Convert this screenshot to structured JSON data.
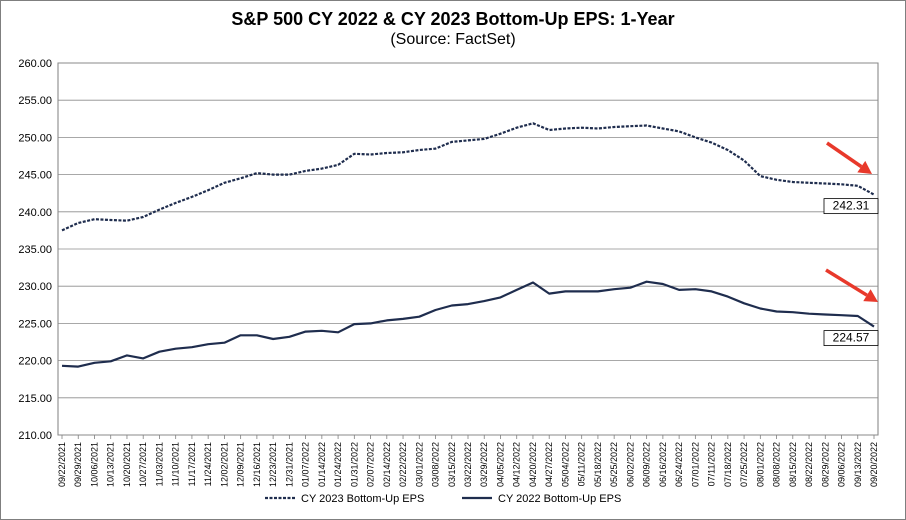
{
  "chart_data": {
    "type": "line",
    "title": "S&P 500 CY 2022 & CY 2023 Bottom-Up  EPS: 1-Year",
    "subtitle": "(Source: FactSet)",
    "xlabel": "",
    "ylabel": "",
    "ylim": [
      210,
      260
    ],
    "yticks": [
      "210.00",
      "215.00",
      "220.00",
      "225.00",
      "230.00",
      "235.00",
      "240.00",
      "245.00",
      "250.00",
      "255.00",
      "260.00"
    ],
    "x": [
      "09/22/2021",
      "09/29/2021",
      "10/06/2021",
      "10/13/2021",
      "10/20/2021",
      "10/27/2021",
      "11/03/2021",
      "11/10/2021",
      "11/17/2021",
      "11/24/2021",
      "12/02/2021",
      "12/09/2021",
      "12/16/2021",
      "12/23/2021",
      "12/31/2021",
      "01/07/2022",
      "01/14/2022",
      "01/24/2022",
      "01/31/2022",
      "02/07/2022",
      "02/14/2022",
      "02/22/2022",
      "03/01/2022",
      "03/08/2022",
      "03/15/2022",
      "03/22/2022",
      "03/29/2022",
      "04/05/2022",
      "04/12/2022",
      "04/20/2022",
      "04/27/2022",
      "05/04/2022",
      "05/11/2022",
      "05/18/2022",
      "05/25/2022",
      "06/02/2022",
      "06/09/2022",
      "06/16/2022",
      "06/24/2022",
      "07/01/2022",
      "07/11/2022",
      "07/18/2022",
      "07/25/2022",
      "08/01/2022",
      "08/08/2022",
      "08/15/2022",
      "08/22/2022",
      "08/29/2022",
      "09/06/2022",
      "09/13/2022",
      "09/20/2022"
    ],
    "series": [
      {
        "name": "CY 2023 Bottom-Up EPS",
        "style": "dashed",
        "color": "#1f2d4e",
        "values": [
          237.5,
          238.5,
          239.0,
          238.9,
          238.8,
          239.3,
          240.3,
          241.2,
          242.0,
          242.9,
          243.9,
          244.5,
          245.2,
          245.0,
          245.0,
          245.5,
          245.8,
          246.3,
          247.8,
          247.7,
          247.9,
          248.0,
          248.3,
          248.5,
          249.4,
          249.6,
          249.8,
          250.5,
          251.3,
          251.9,
          251.0,
          251.2,
          251.3,
          251.2,
          251.4,
          251.5,
          251.6,
          251.2,
          250.8,
          250.0,
          249.3,
          248.3,
          246.9,
          244.8,
          244.3,
          244.0,
          243.9,
          243.8,
          243.7,
          243.5,
          242.31
        ]
      },
      {
        "name": "CY 2022 Bottom-Up EPS",
        "style": "solid",
        "color": "#1f2d4e",
        "values": [
          219.3,
          219.2,
          219.7,
          219.9,
          220.7,
          220.3,
          221.2,
          221.6,
          221.8,
          222.2,
          222.4,
          223.4,
          223.4,
          222.9,
          223.2,
          223.9,
          224.0,
          223.8,
          224.9,
          225.0,
          225.4,
          225.6,
          225.9,
          226.8,
          227.4,
          227.6,
          228.0,
          228.5,
          229.5,
          230.5,
          229.0,
          229.3,
          229.3,
          229.3,
          229.6,
          229.8,
          230.6,
          230.3,
          229.5,
          229.6,
          229.3,
          228.6,
          227.7,
          227.0,
          226.6,
          226.5,
          226.3,
          226.2,
          226.1,
          226.0,
          224.57
        ]
      }
    ],
    "end_labels": [
      "242.31",
      "224.57"
    ],
    "legend": {
      "position": "bottom-center",
      "items": [
        "CY 2023 Bottom-Up EPS",
        "CY 2022 Bottom-Up EPS"
      ]
    },
    "grid": true,
    "arrow_color": "#e8392b"
  }
}
